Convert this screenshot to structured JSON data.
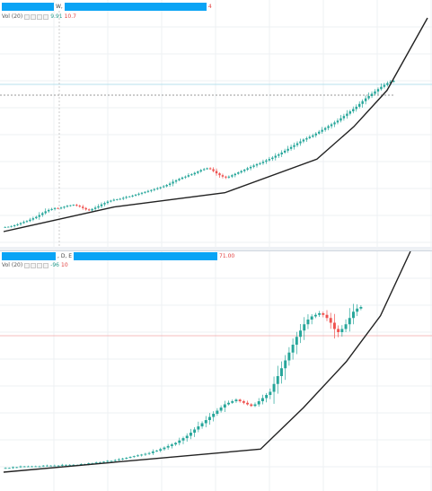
{
  "top": {
    "header_mid": "W,",
    "header_end": "4",
    "vol_label": "Vol (20)",
    "vol_values": [
      "9.91",
      "10.7"
    ]
  },
  "bottom": {
    "header_mid": ", D, E",
    "header_end": "71.00",
    "vol_label": "Vol (20)",
    "vol_values": [
      "-96",
      "1๟0"
    ]
  },
  "colors": {
    "up": "#26a69a",
    "down": "#ef5350",
    "trend": "#222222",
    "grid": "#eef0f3",
    "hline_top": "#9fd8e8",
    "hline_bottom": "#f2a6a6",
    "redact": "#0aa4f5"
  },
  "chart_data": [
    {
      "type": "candlestick",
      "series": [
        {
          "values": [
            8,
            9,
            12,
            16,
            20,
            25,
            30,
            34,
            40,
            46,
            52,
            60,
            68,
            76,
            82,
            86,
            90,
            88,
            92,
            96,
            100,
            102,
            104,
            100,
            96,
            90,
            84,
            80,
            86,
            92,
            98,
            106,
            112,
            118,
            122,
            126,
            128,
            130,
            134,
            138,
            140,
            144,
            148,
            152,
            156,
            160,
            164,
            168,
            172,
            176,
            180,
            184,
            190,
            196,
            204,
            210,
            216,
            222,
            226,
            232,
            236,
            242,
            248,
            254,
            258,
            262,
            258,
            250,
            240,
            232,
            226,
            222,
            226,
            232,
            238,
            244,
            250,
            256,
            262,
            268,
            274,
            280,
            284,
            290,
            296,
            302,
            308,
            316,
            322,
            330,
            338,
            346,
            354,
            362,
            370,
            378,
            386,
            392,
            398,
            404,
            412,
            420,
            428,
            436,
            444,
            452,
            460,
            468,
            478,
            488,
            498,
            508,
            518,
            528,
            540,
            552,
            564,
            574,
            584,
            594,
            604,
            614,
            622,
            630,
            636,
            640
          ]
        }
      ],
      "trendline": [
        [
          0,
          0
        ],
        [
          30,
          38
        ],
        [
          60,
          60
        ],
        [
          85,
          112
        ],
        [
          95,
          162
        ],
        [
          104,
          218
        ],
        [
          115,
          330
        ]
      ],
      "has_grid": true
    },
    {
      "type": "candlestick",
      "series": [
        {
          "values": [
            3,
            3,
            4,
            4,
            5,
            5,
            5,
            5,
            5,
            5,
            6,
            6,
            6,
            6,
            6,
            7,
            7,
            7,
            7,
            7,
            8,
            8,
            9,
            9,
            10,
            10,
            11,
            12,
            12,
            13,
            14,
            15,
            16,
            17,
            18,
            19,
            20,
            21,
            22,
            24,
            25,
            27,
            29,
            31,
            33,
            35,
            38,
            41,
            44,
            48,
            52,
            56,
            60,
            64,
            68,
            72,
            76,
            80,
            84,
            86,
            88,
            90,
            88,
            86,
            84,
            82,
            84,
            88,
            92,
            96,
            100,
            110,
            120,
            130,
            140,
            150,
            160,
            170,
            178,
            186,
            192,
            196,
            198,
            200,
            198,
            194,
            188,
            180,
            176,
            180,
            186,
            194,
            202,
            206,
            208
          ]
        }
      ],
      "trendline": [
        [
          0,
          0
        ],
        [
          60,
          25
        ],
        [
          70,
          70
        ],
        [
          80,
          120
        ],
        [
          88,
          170
        ],
        [
          95,
          240
        ]
      ],
      "has_grid": true
    }
  ]
}
